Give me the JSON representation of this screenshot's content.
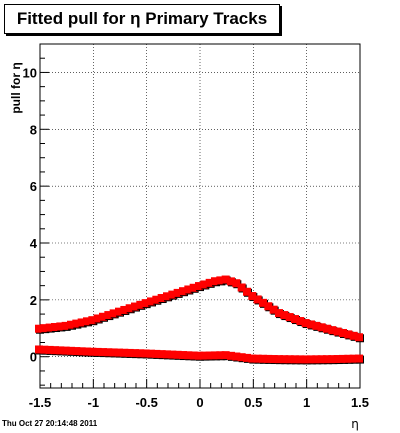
{
  "chart_data": {
    "type": "scatter",
    "title": "Fitted pull for η  Primary Tracks",
    "xlabel": "η",
    "ylabel": "pull for η",
    "xlim": [
      -1.5,
      1.5
    ],
    "ylim": [
      -1.1,
      11.0
    ],
    "x_ticks": [
      -1.5,
      -1,
      -0.5,
      0,
      0.5,
      1,
      1.5
    ],
    "x_tick_labels": [
      "-1.5",
      "-1",
      "-0.5",
      "0",
      "0.5",
      "1",
      "1.5"
    ],
    "y_ticks": [
      0,
      2,
      4,
      6,
      8,
      10
    ],
    "y_tick_labels": [
      "0",
      "2",
      "4",
      "6",
      "8",
      "10"
    ],
    "grid": true,
    "marker_color": "#ff0000",
    "series": [
      {
        "x": [
          -1.5,
          -1.25,
          -1.0,
          -0.75,
          -0.5,
          -0.25,
          0.0,
          0.15,
          0.25,
          0.35,
          0.5,
          0.75,
          1.0,
          1.25,
          1.5
        ],
        "values": [
          0.95,
          1.05,
          1.25,
          1.55,
          1.85,
          2.15,
          2.45,
          2.62,
          2.68,
          2.55,
          2.1,
          1.5,
          1.15,
          0.9,
          0.65
        ]
      },
      {
        "x": [
          -1.5,
          -1.25,
          -1.0,
          -0.75,
          -0.5,
          -0.25,
          0.0,
          0.25,
          0.5,
          0.75,
          1.0,
          1.25,
          1.5
        ],
        "values": [
          0.22,
          0.18,
          0.14,
          0.11,
          0.08,
          0.04,
          0.0,
          0.02,
          -0.1,
          -0.12,
          -0.13,
          -0.12,
          -0.1
        ]
      }
    ]
  },
  "footer_text": "Thu Oct 27 20:14:48 2011"
}
